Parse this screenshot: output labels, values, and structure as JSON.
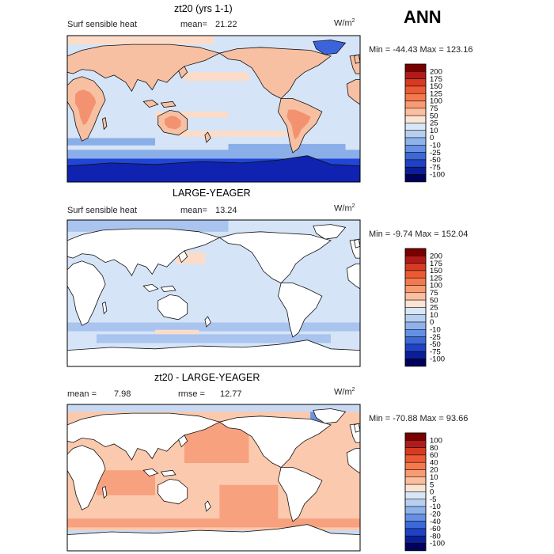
{
  "season": "ANN",
  "chart_data": [
    {
      "type": "heatmap",
      "title": "zt20 (yrs 1-1)",
      "variable": "Surf sensible heat",
      "mean_label": "mean=",
      "mean_value": "21.22",
      "units": "W/m",
      "units_exp": "2",
      "min_max": "Min = -44.43 Max = 123.16",
      "colorbar": {
        "levels": [
          "200",
          "175",
          "150",
          "125",
          "100",
          "75",
          "50",
          "25",
          "10",
          "0",
          "-10",
          "-25",
          "-50",
          "-75",
          "-100"
        ],
        "colors": [
          "#7a0000",
          "#b21a1a",
          "#d63a22",
          "#ec5a34",
          "#f4794e",
          "#f89a72",
          "#fbbf9f",
          "#fde3d1",
          "#d8e6f6",
          "#b7cff0",
          "#8fb2ea",
          "#6690e3",
          "#3d68d8",
          "#1f42c4",
          "#0a1f96",
          "#00005c"
        ]
      },
      "features": {
        "ocean_color": "#d6e4f7",
        "land_color": "#f8c0a2",
        "land_hot_color": "#f39270",
        "antarctic_color": "#2145d6",
        "antarctic_deep_color": "#0f23b0",
        "arctic_color": "#3b64dc",
        "southern_band_color": "#8aaee8",
        "warm_band_color": "#fcdcc8"
      }
    },
    {
      "type": "heatmap",
      "title": "LARGE-YEAGER",
      "variable": "Surf sensible heat",
      "mean_label": "mean=",
      "mean_value": "13.24",
      "units": "W/m",
      "units_exp": "2",
      "min_max": "Min = -9.74 Max = 152.04",
      "colorbar": {
        "levels": [
          "200",
          "175",
          "150",
          "125",
          "100",
          "75",
          "50",
          "25",
          "10",
          "0",
          "-10",
          "-25",
          "-50",
          "-75",
          "-100"
        ],
        "colors": [
          "#7a0000",
          "#b21a1a",
          "#d63a22",
          "#ec5a34",
          "#f4794e",
          "#f89a72",
          "#fbbf9f",
          "#fde3d1",
          "#d8e6f6",
          "#b7cff0",
          "#8fb2ea",
          "#6690e3",
          "#3d68d8",
          "#1f42c4",
          "#0a1f96",
          "#00005c"
        ]
      },
      "features": {
        "ocean_color": "#d6e4f7",
        "land_color": "#ffffff",
        "southern_band_color": "#a9c4ee",
        "warm_band_color": "#fcdcc8"
      }
    },
    {
      "type": "heatmap",
      "title": "zt20 - LARGE-YEAGER",
      "mean_label": "mean =",
      "mean_value": "7.98",
      "rmse_label": "rmse =",
      "rmse_value": "12.77",
      "units": "W/m",
      "units_exp": "2",
      "min_max": "Min = -70.88 Max = 93.66",
      "colorbar": {
        "levels": [
          "100",
          "80",
          "60",
          "40",
          "20",
          "10",
          "5",
          "0",
          "-5",
          "-10",
          "-20",
          "-40",
          "-60",
          "-80",
          "-100"
        ],
        "colors": [
          "#7a0000",
          "#b21a1a",
          "#d63a22",
          "#ec5a34",
          "#f4794e",
          "#f89a72",
          "#fbbf9f",
          "#fde3d1",
          "#d8e6f6",
          "#b7cff0",
          "#8fb2ea",
          "#6690e3",
          "#3d68d8",
          "#1f42c4",
          "#0a1f96",
          "#00005c"
        ]
      },
      "features": {
        "ocean_color": "#fbc9ad",
        "ocean_warm_color": "#f7a17e",
        "land_color": "#ffffff",
        "cool_color": "#c9d9f3",
        "cold_color": "#6f92e0"
      }
    }
  ]
}
